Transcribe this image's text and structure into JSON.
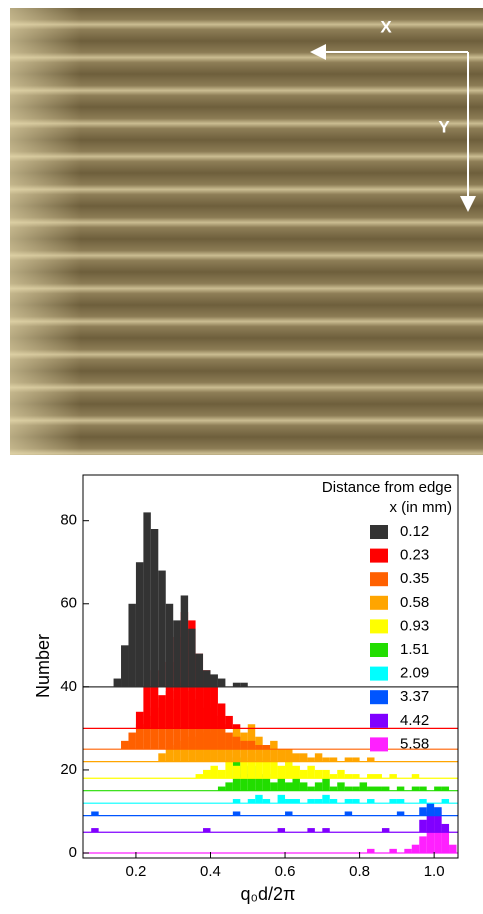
{
  "image_labels": {
    "x_arrow": "X",
    "y_arrow": "Y"
  },
  "chart_data": {
    "type": "offset-histogram",
    "ylabel": "Number",
    "xlabel": "q₀d/2π",
    "legend_title": "Distance from edge",
    "legend_subtitle": "x (in mm)",
    "legend": "upper right",
    "xlim": [
      0.058,
      1.064
    ],
    "ylim": [
      -1.2,
      91
    ],
    "xticks": [
      0.2,
      0.4,
      0.6,
      0.8,
      {
        "value": 1,
        "label": "1.0"
      }
    ],
    "yticks": [
      0,
      20,
      40,
      60,
      80
    ],
    "bins": [
      0.06,
      0.08,
      0.1,
      0.12,
      0.14,
      0.16,
      0.18,
      0.2,
      0.22,
      0.24,
      0.26,
      0.28,
      0.3,
      0.32,
      0.34,
      0.36,
      0.38,
      0.4,
      0.42,
      0.44,
      0.46,
      0.48,
      0.5,
      0.52,
      0.54,
      0.56,
      0.58,
      0.6,
      0.62,
      0.64,
      0.66,
      0.68,
      0.7,
      0.72,
      0.74,
      0.76,
      0.78,
      0.8,
      0.82,
      0.84,
      0.86,
      0.88,
      0.9,
      0.92,
      0.94,
      0.96,
      0.98,
      1.0,
      1.02,
      1.04,
      1.06
    ],
    "series": [
      {
        "name": "0.12",
        "color": "#333333",
        "offset": 40,
        "values": [
          0,
          0,
          0,
          0,
          2,
          10,
          20,
          30,
          42,
          38,
          28,
          20,
          16,
          22,
          14,
          8,
          4,
          3,
          2,
          0,
          1,
          1,
          0,
          0,
          0,
          0,
          0,
          0,
          0,
          0,
          0,
          0,
          0,
          0,
          0,
          0,
          0,
          0,
          0,
          0,
          0,
          0,
          0,
          0,
          0,
          0,
          0,
          0,
          0,
          0
        ]
      },
      {
        "name": "0.23",
        "color": "#ff0000",
        "offset": 30,
        "values": [
          0,
          0,
          0,
          0,
          0,
          0,
          0,
          4,
          10,
          14,
          8,
          16,
          22,
          28,
          26,
          18,
          14,
          10,
          6,
          3,
          1,
          0,
          0,
          0,
          0,
          0,
          0,
          0,
          0,
          0,
          0,
          0,
          0,
          0,
          0,
          0,
          0,
          0,
          0,
          0,
          0,
          0,
          0,
          0,
          0,
          0,
          0,
          0,
          0,
          0
        ]
      },
      {
        "name": "0.35",
        "color": "#ff6000",
        "offset": 25,
        "values": [
          0,
          0,
          0,
          0,
          0,
          2,
          4,
          6,
          8,
          10,
          12,
          14,
          12,
          16,
          14,
          12,
          10,
          8,
          6,
          4,
          3,
          2,
          2,
          1,
          1,
          0,
          0,
          0,
          0,
          0,
          0,
          0,
          0,
          0,
          0,
          0,
          0,
          0,
          0,
          0,
          0,
          0,
          0,
          0,
          0,
          0,
          0,
          0,
          0,
          0
        ]
      },
      {
        "name": "0.58",
        "color": "#ffa500",
        "offset": 22,
        "values": [
          0,
          0,
          0,
          0,
          0,
          0,
          0,
          0,
          0,
          0,
          2,
          3,
          4,
          5,
          6,
          6,
          7,
          8,
          7,
          6,
          8,
          7,
          9,
          6,
          4,
          5,
          3,
          3,
          2,
          2,
          1,
          2,
          1,
          1,
          0,
          1,
          1,
          0,
          1,
          0,
          0,
          0,
          0,
          0,
          0,
          0,
          0,
          0,
          0,
          0
        ]
      },
      {
        "name": "0.93",
        "color": "#ffff00",
        "offset": 18,
        "values": [
          0,
          0,
          0,
          0,
          0,
          0,
          0,
          0,
          0,
          0,
          0,
          0,
          0,
          0,
          0,
          1,
          2,
          3,
          2,
          4,
          3,
          5,
          4,
          6,
          5,
          4,
          3,
          4,
          3,
          2,
          3,
          2,
          2,
          1,
          2,
          1,
          1,
          0,
          1,
          1,
          0,
          1,
          0,
          0,
          1,
          0,
          0,
          0,
          0,
          0
        ]
      },
      {
        "name": "1.51",
        "color": "#22dd00",
        "offset": 15,
        "values": [
          0,
          0,
          0,
          0,
          0,
          0,
          0,
          0,
          0,
          0,
          0,
          0,
          0,
          0,
          0,
          0,
          0,
          0,
          1,
          2,
          8,
          4,
          6,
          3,
          4,
          2,
          3,
          2,
          3,
          2,
          1,
          2,
          3,
          1,
          2,
          1,
          1,
          2,
          1,
          1,
          1,
          0,
          1,
          0,
          1,
          1,
          0,
          1,
          1,
          0
        ]
      },
      {
        "name": "2.09",
        "color": "#00ffff",
        "offset": 12,
        "values": [
          0,
          0,
          0,
          0,
          0,
          0,
          0,
          0,
          0,
          0,
          0,
          0,
          0,
          0,
          0,
          0,
          0,
          0,
          0,
          0,
          1,
          0,
          1,
          2,
          1,
          0,
          2,
          1,
          1,
          0,
          1,
          1,
          2,
          1,
          0,
          1,
          1,
          0,
          1,
          0,
          0,
          1,
          1,
          0,
          0,
          1,
          0,
          0,
          1,
          0
        ]
      },
      {
        "name": "3.37",
        "color": "#0055ff",
        "offset": 9,
        "values": [
          0,
          1,
          0,
          0,
          0,
          0,
          0,
          0,
          0,
          0,
          0,
          0,
          0,
          0,
          0,
          0,
          0,
          0,
          0,
          0,
          1,
          0,
          0,
          0,
          0,
          0,
          0,
          1,
          0,
          0,
          0,
          0,
          0,
          0,
          0,
          1,
          0,
          0,
          0,
          0,
          0,
          0,
          1,
          0,
          0,
          2,
          3,
          2,
          0,
          0
        ]
      },
      {
        "name": "4.42",
        "color": "#8000ff",
        "offset": 5,
        "values": [
          0,
          1,
          0,
          0,
          0,
          0,
          0,
          0,
          0,
          0,
          0,
          0,
          0,
          0,
          0,
          0,
          1,
          0,
          0,
          0,
          0,
          0,
          0,
          0,
          0,
          0,
          1,
          0,
          0,
          0,
          1,
          0,
          1,
          0,
          0,
          0,
          0,
          0,
          0,
          0,
          1,
          0,
          0,
          0,
          0,
          3,
          5,
          6,
          2,
          0
        ]
      },
      {
        "name": "5.58",
        "color": "#ff20ff",
        "offset": 0,
        "values": [
          0,
          0,
          0,
          0,
          0,
          0,
          0,
          0,
          0,
          0,
          0,
          0,
          0,
          0,
          0,
          0,
          0,
          0,
          0,
          0,
          0,
          0,
          0,
          0,
          0,
          0,
          0,
          0,
          0,
          0,
          0,
          0,
          0,
          0,
          0,
          0,
          0,
          0,
          1,
          0,
          0,
          1,
          0,
          1,
          2,
          4,
          8,
          10,
          5,
          2
        ]
      }
    ]
  }
}
